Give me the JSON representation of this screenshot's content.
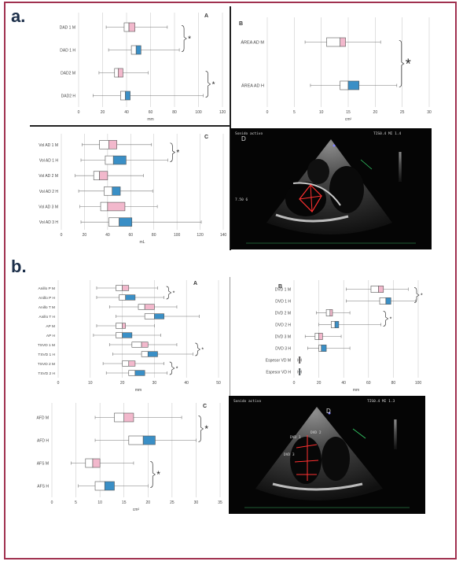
{
  "sections": {
    "a": "a.",
    "b": "b."
  },
  "chart_data": [
    {
      "id": "a-A",
      "type": "boxplot",
      "panel_letter": "A",
      "xlabel": "mm",
      "xlim": [
        0,
        120
      ],
      "xticks": [
        0,
        20,
        40,
        60,
        80,
        100,
        120
      ],
      "categories": [
        "DAD 1 M",
        "DAD 1 H",
        "DAD2 M",
        "DAD2 H"
      ],
      "boxes": [
        {
          "min": 23,
          "q1": 38,
          "median": 42,
          "q3": 47,
          "max": 74,
          "sex": "M"
        },
        {
          "min": 25,
          "q1": 44,
          "median": 48,
          "q3": 52,
          "max": 84,
          "sex": "H"
        },
        {
          "min": 17,
          "q1": 30,
          "median": 33,
          "q3": 37,
          "max": 58,
          "sex": "M"
        },
        {
          "min": 12,
          "q1": 35,
          "median": 39,
          "q3": 43,
          "max": 104,
          "sex": "H"
        }
      ],
      "significance": [
        {
          "between": [
            0,
            1
          ],
          "marker": "*"
        },
        {
          "between": [
            2,
            3
          ],
          "marker": "*"
        }
      ]
    },
    {
      "id": "a-B",
      "type": "boxplot",
      "panel_letter": "B",
      "xlabel": "cm²",
      "xlim": [
        0,
        30
      ],
      "xticks": [
        0,
        5,
        10,
        15,
        20,
        25,
        30
      ],
      "categories": [
        "ÁREA AD M",
        "ÁREA AD H"
      ],
      "boxes": [
        {
          "min": 7,
          "q1": 11,
          "median": 13.5,
          "q3": 14.5,
          "max": 21,
          "sex": "M"
        },
        {
          "min": 8,
          "q1": 13.5,
          "median": 15,
          "q3": 17,
          "max": 24,
          "sex": "H"
        }
      ],
      "significance": [
        {
          "between": [
            0,
            1
          ],
          "marker": "*"
        }
      ]
    },
    {
      "id": "a-C",
      "type": "boxplot",
      "panel_letter": "C",
      "xlabel": "mL",
      "xlim": [
        0,
        140
      ],
      "xticks": [
        0,
        20,
        40,
        60,
        80,
        100,
        120,
        140
      ],
      "categories": [
        "Vol AD 1 M",
        "Vol AD 1 H",
        "Vol AD 2 M",
        "Vol AD 2 H",
        "Vol AD 3 M",
        "Vol AD 3 H"
      ],
      "boxes": [
        {
          "min": 18,
          "q1": 33,
          "median": 41,
          "q3": 48,
          "max": 78,
          "sex": "M"
        },
        {
          "min": 17,
          "q1": 38,
          "median": 45,
          "q3": 56,
          "max": 92,
          "sex": "H"
        },
        {
          "min": 12,
          "q1": 28,
          "median": 33,
          "q3": 40,
          "max": 71,
          "sex": "M"
        },
        {
          "min": 15,
          "q1": 37,
          "median": 44,
          "q3": 51,
          "max": 79,
          "sex": "H"
        },
        {
          "min": 16,
          "q1": 34,
          "median": 40,
          "q3": 55,
          "max": 83,
          "sex": "M"
        },
        {
          "min": 17,
          "q1": 41,
          "median": 50,
          "q3": 61,
          "max": 121,
          "sex": "H"
        }
      ],
      "significance": [
        {
          "between": [
            0,
            1
          ],
          "marker": "*"
        }
      ]
    },
    {
      "id": "b-A",
      "type": "boxplot",
      "panel_letter": "A",
      "xlabel": "mm",
      "xlim": [
        0,
        50
      ],
      "xticks": [
        0,
        10,
        20,
        30,
        40,
        50
      ],
      "categories": [
        "Anillo P M",
        "Anillo P H",
        "Anillo T M",
        "Anillo T H",
        "AP M",
        "AP H",
        "TSVD 1 M",
        "TSVD 1 H",
        "TSVD 2 M",
        "TSVD 2 H"
      ],
      "boxes": [
        {
          "min": 12,
          "q1": 18,
          "median": 20,
          "q3": 22,
          "max": 31,
          "sex": "M"
        },
        {
          "min": 12,
          "q1": 19,
          "median": 21,
          "q3": 24,
          "max": 33,
          "sex": "H"
        },
        {
          "min": 16,
          "q1": 25,
          "median": 27,
          "q3": 30,
          "max": 37,
          "sex": "M"
        },
        {
          "min": 18,
          "q1": 27,
          "median": 30,
          "q3": 33,
          "max": 44,
          "sex": "H"
        },
        {
          "min": 12,
          "q1": 18,
          "median": 20,
          "q3": 21,
          "max": 30,
          "sex": "M"
        },
        {
          "min": 11,
          "q1": 18,
          "median": 20,
          "q3": 23,
          "max": 32,
          "sex": "H"
        },
        {
          "min": 16,
          "q1": 23,
          "median": 26,
          "q3": 28,
          "max": 37,
          "sex": "M"
        },
        {
          "min": 17,
          "q1": 26,
          "median": 28,
          "q3": 31,
          "max": 42,
          "sex": "H"
        },
        {
          "min": 14,
          "q1": 20,
          "median": 22,
          "q3": 24,
          "max": 33,
          "sex": "M"
        },
        {
          "min": 15,
          "q1": 22,
          "median": 24,
          "q3": 27,
          "max": 34,
          "sex": "H"
        }
      ],
      "significance": [
        {
          "between": [
            0,
            1
          ],
          "marker": "*"
        },
        {
          "between": [
            6,
            7
          ],
          "marker": "*"
        },
        {
          "between": [
            8,
            9
          ],
          "marker": "*"
        }
      ]
    },
    {
      "id": "b-B",
      "type": "boxplot",
      "panel_letter": "B",
      "xlabel": "mm",
      "xlim": [
        0,
        100
      ],
      "xticks": [
        0,
        20,
        40,
        60,
        80,
        100
      ],
      "categories": [
        "DVD 1 M",
        "DVD 1 H",
        "DVD 2 M",
        "DVD 2 H",
        "DVD 3 M",
        "DVD 3 H",
        "Espesor VD M",
        "Espesor VD H"
      ],
      "boxes": [
        {
          "min": 42,
          "q1": 62,
          "median": 68,
          "q3": 72,
          "max": 92,
          "sex": "M"
        },
        {
          "min": 42,
          "q1": 69,
          "median": 74,
          "q3": 78,
          "max": 98,
          "sex": "H"
        },
        {
          "min": 18,
          "q1": 26,
          "median": 29,
          "q3": 31,
          "max": 45,
          "sex": "M"
        },
        {
          "min": 20,
          "q1": 30,
          "median": 33,
          "q3": 36,
          "max": 70,
          "sex": "H"
        },
        {
          "min": 9,
          "q1": 17,
          "median": 20,
          "q3": 23,
          "max": 38,
          "sex": "M"
        },
        {
          "min": 11,
          "q1": 20,
          "median": 22,
          "q3": 26,
          "max": 45,
          "sex": "H"
        },
        {
          "min": 3,
          "q1": 4,
          "median": 4.5,
          "q3": 5,
          "max": 6,
          "sex": "M"
        },
        {
          "min": 3,
          "q1": 4,
          "median": 4.5,
          "q3": 5,
          "max": 6,
          "sex": "H"
        }
      ],
      "significance": [
        {
          "between": [
            0,
            1
          ],
          "marker": "*"
        },
        {
          "between": [
            2,
            3
          ],
          "marker": "*"
        }
      ]
    },
    {
      "id": "b-C",
      "type": "boxplot",
      "panel_letter": "C",
      "xlabel": "cm²",
      "xlim": [
        0,
        35
      ],
      "xticks": [
        0,
        5,
        10,
        15,
        20,
        25,
        30,
        35
      ],
      "categories": [
        "AFD M",
        "AFD H",
        "AFS M",
        "AFS H"
      ],
      "boxes": [
        {
          "min": 9,
          "q1": 13,
          "median": 15,
          "q3": 17,
          "max": 27,
          "sex": "M"
        },
        {
          "min": 9,
          "q1": 16,
          "median": 19,
          "q3": 21.5,
          "max": 30,
          "sex": "H"
        },
        {
          "min": 4,
          "q1": 7,
          "median": 8.5,
          "q3": 10,
          "max": 17,
          "sex": "M"
        },
        {
          "min": 5.5,
          "q1": 9,
          "median": 11,
          "q3": 13,
          "max": 20,
          "sex": "H"
        }
      ],
      "significance": [
        {
          "between": [
            0,
            1
          ],
          "marker": "*"
        },
        {
          "between": [
            2,
            3
          ],
          "marker": "*"
        }
      ]
    }
  ],
  "echo": {
    "panel_a": {
      "letter": "D",
      "top_left": "Sonido activo",
      "top_right": "TIS0.4 MI 1.4",
      "side_label": "7.50 6"
    },
    "panel_b": {
      "letter": "D",
      "top_left": "Sonido activo",
      "top_right": "TIS0.4 MI 1.3",
      "tags": [
        "DVD 1",
        "DVD 2",
        "DVD 3"
      ]
    }
  },
  "colors": {
    "M": "#f2b8cc",
    "H": "#3a8fc6",
    "box_outline": "#555555",
    "grid": "#cccccc",
    "frame": "#a0314f"
  }
}
